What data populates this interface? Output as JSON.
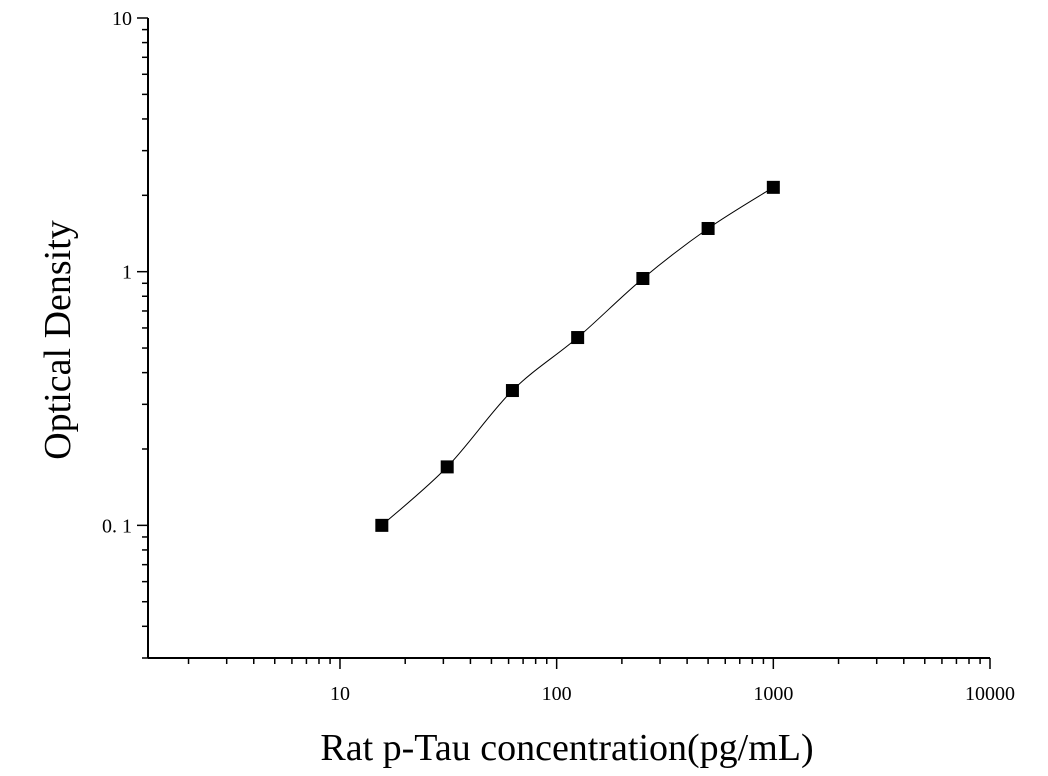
{
  "chart_data": {
    "type": "scatter",
    "xlabel": "Rat p-Tau concentration(pg/mL)",
    "ylabel": "Optical Density",
    "x_scale": "log",
    "y_scale": "log",
    "xlim": [
      1.3,
      10000
    ],
    "ylim": [
      0.03,
      10
    ],
    "x_ticks": [
      {
        "value": 10,
        "label": "10"
      },
      {
        "value": 100,
        "label": "100"
      },
      {
        "value": 1000,
        "label": "1000"
      },
      {
        "value": 10000,
        "label": "10000"
      }
    ],
    "y_ticks": [
      {
        "value": 0.1,
        "label": "0. 1"
      },
      {
        "value": 1,
        "label": "1"
      },
      {
        "value": 10,
        "label": "10"
      }
    ],
    "grid": false,
    "series": [
      {
        "marker": "square",
        "color": "#000000",
        "fit_curve": true,
        "x": [
          15.6,
          31.25,
          62.5,
          125,
          250,
          500,
          1000
        ],
        "y": [
          0.1,
          0.17,
          0.34,
          0.55,
          0.94,
          1.48,
          2.15
        ]
      }
    ]
  }
}
